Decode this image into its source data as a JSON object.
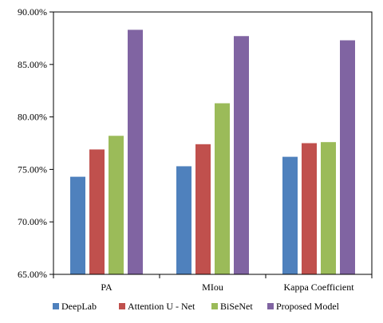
{
  "chart_data": {
    "type": "bar",
    "categories": [
      "PA",
      "MIou",
      "Kappa Coefficient"
    ],
    "series": [
      {
        "name": "DeepLab",
        "color": "#4f81bd",
        "values": [
          74.3,
          75.3,
          76.2
        ]
      },
      {
        "name": "Attention U - Net",
        "color": "#c0504d",
        "values": [
          76.9,
          77.4,
          77.5
        ]
      },
      {
        "name": "BiSeNet",
        "color": "#9bbb59",
        "values": [
          78.2,
          81.3,
          77.6
        ]
      },
      {
        "name": "Proposed Model",
        "color": "#8064a2",
        "values": [
          88.3,
          87.7,
          87.3
        ]
      }
    ],
    "ylim": [
      65,
      90
    ],
    "yticks": [
      "65.00%",
      "70.00%",
      "75.00%",
      "80.00%",
      "85.00%",
      "90.00%"
    ],
    "ytick_values": [
      65,
      70,
      75,
      80,
      85,
      90
    ],
    "grid": false,
    "legend_position": "bottom"
  }
}
